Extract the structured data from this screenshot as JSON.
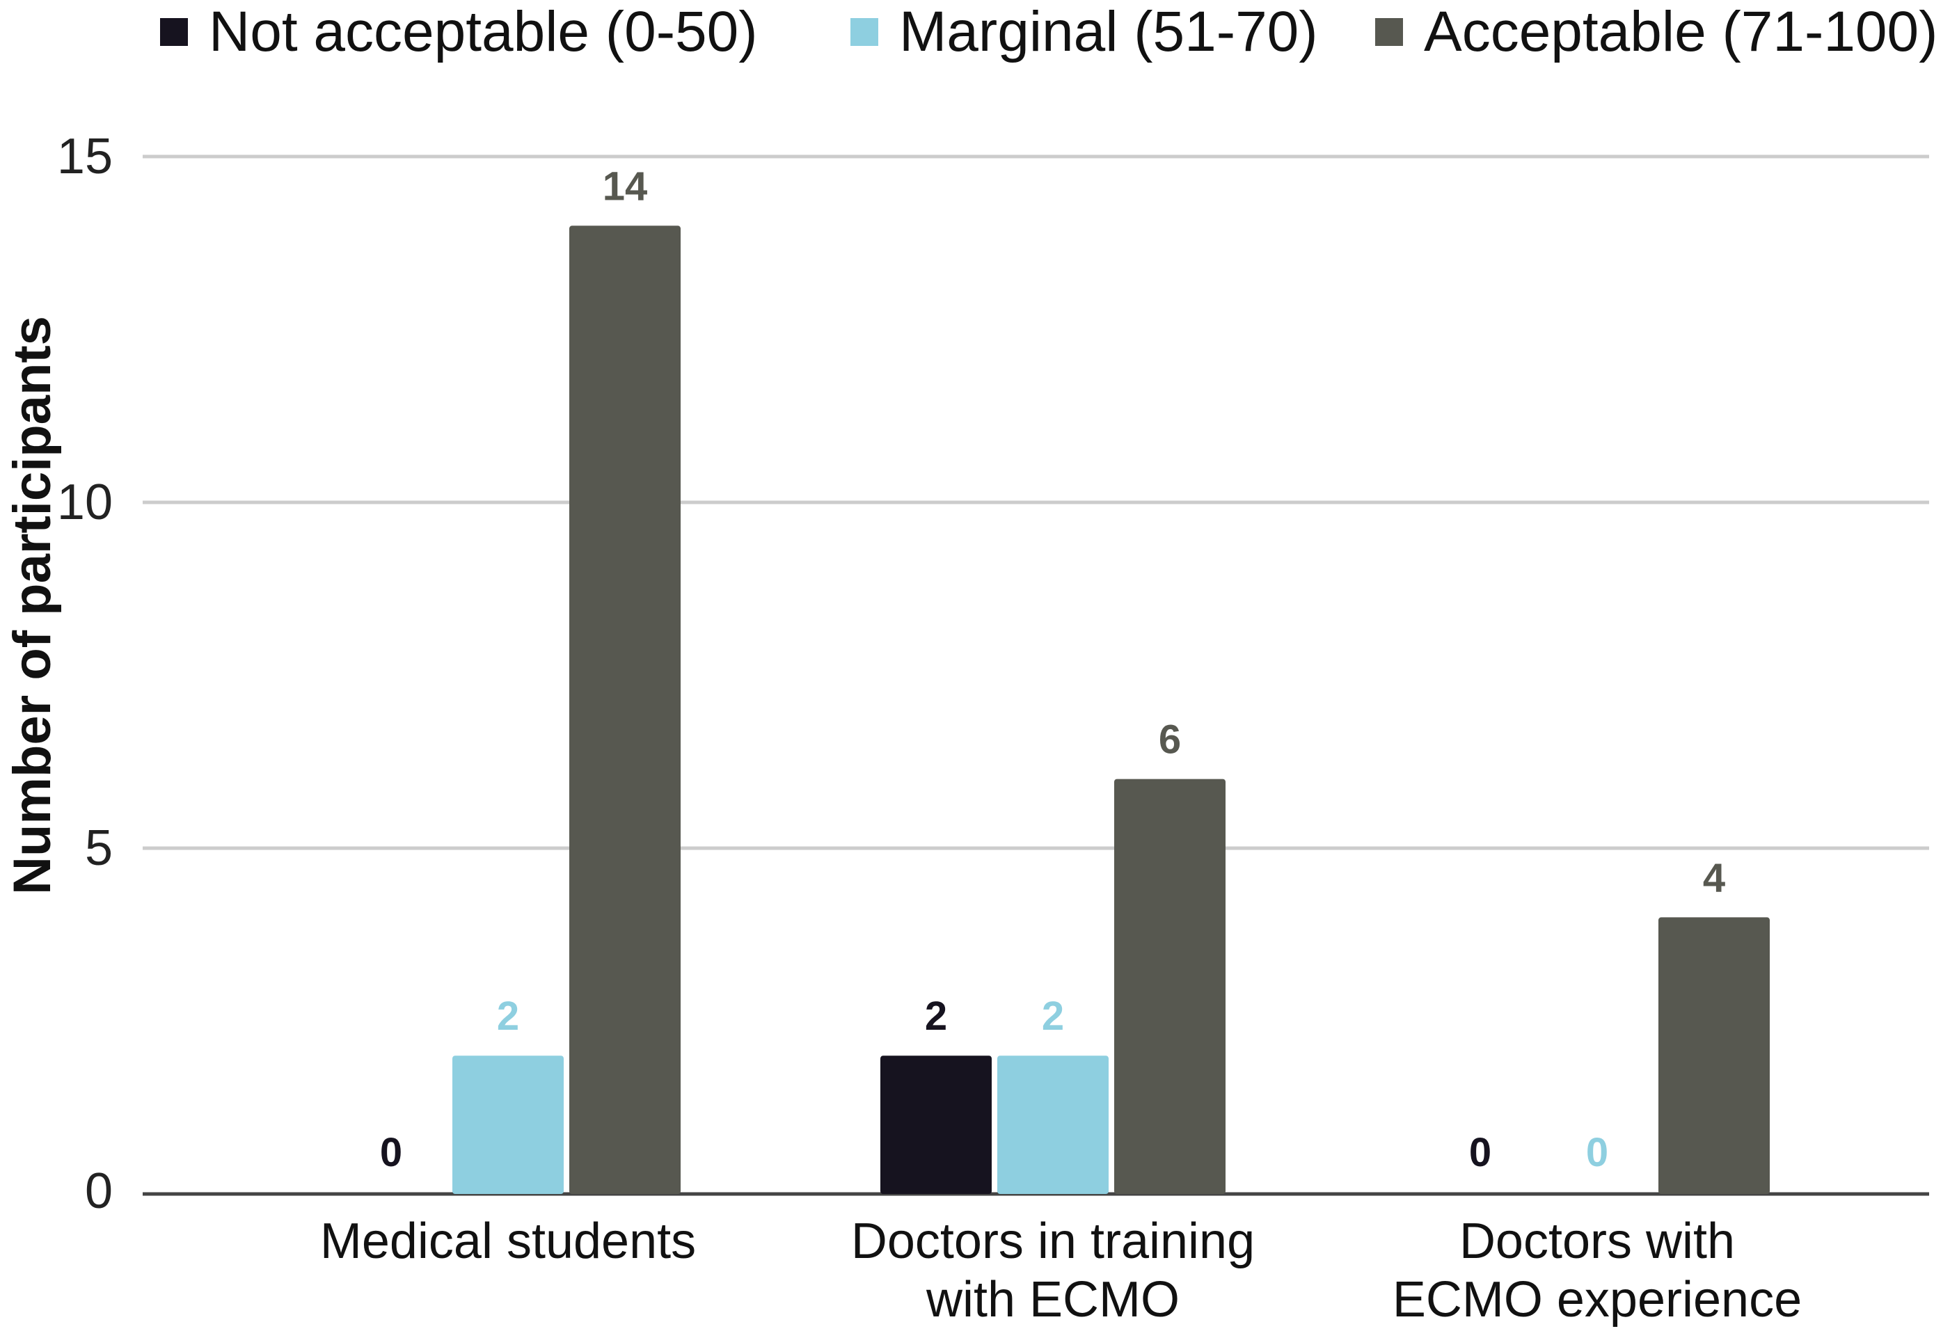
{
  "chart_data": {
    "type": "bar",
    "title": "",
    "xlabel": "",
    "ylabel": "Number of participants",
    "ylim": [
      0,
      15
    ],
    "yticks": [
      0,
      5,
      10,
      15
    ],
    "grid": true,
    "legend_position": "top",
    "categories": [
      [
        "Medical students"
      ],
      [
        "Doctors in training",
        "with ECMO"
      ],
      [
        "Doctors with",
        "ECMO experience"
      ]
    ],
    "series": [
      {
        "name": "Not acceptable (0-50)",
        "color": "#16131f",
        "values": [
          0,
          2,
          0
        ]
      },
      {
        "name": "Marginal (51-70)",
        "color": "#8ecfe0",
        "values": [
          2,
          2,
          0
        ]
      },
      {
        "name": "Acceptable (71-100)",
        "color": "#575850",
        "values": [
          14,
          6,
          4
        ]
      }
    ],
    "data_labels": true
  },
  "colors": {
    "grid": "#cccccc",
    "axis": "#444444"
  }
}
